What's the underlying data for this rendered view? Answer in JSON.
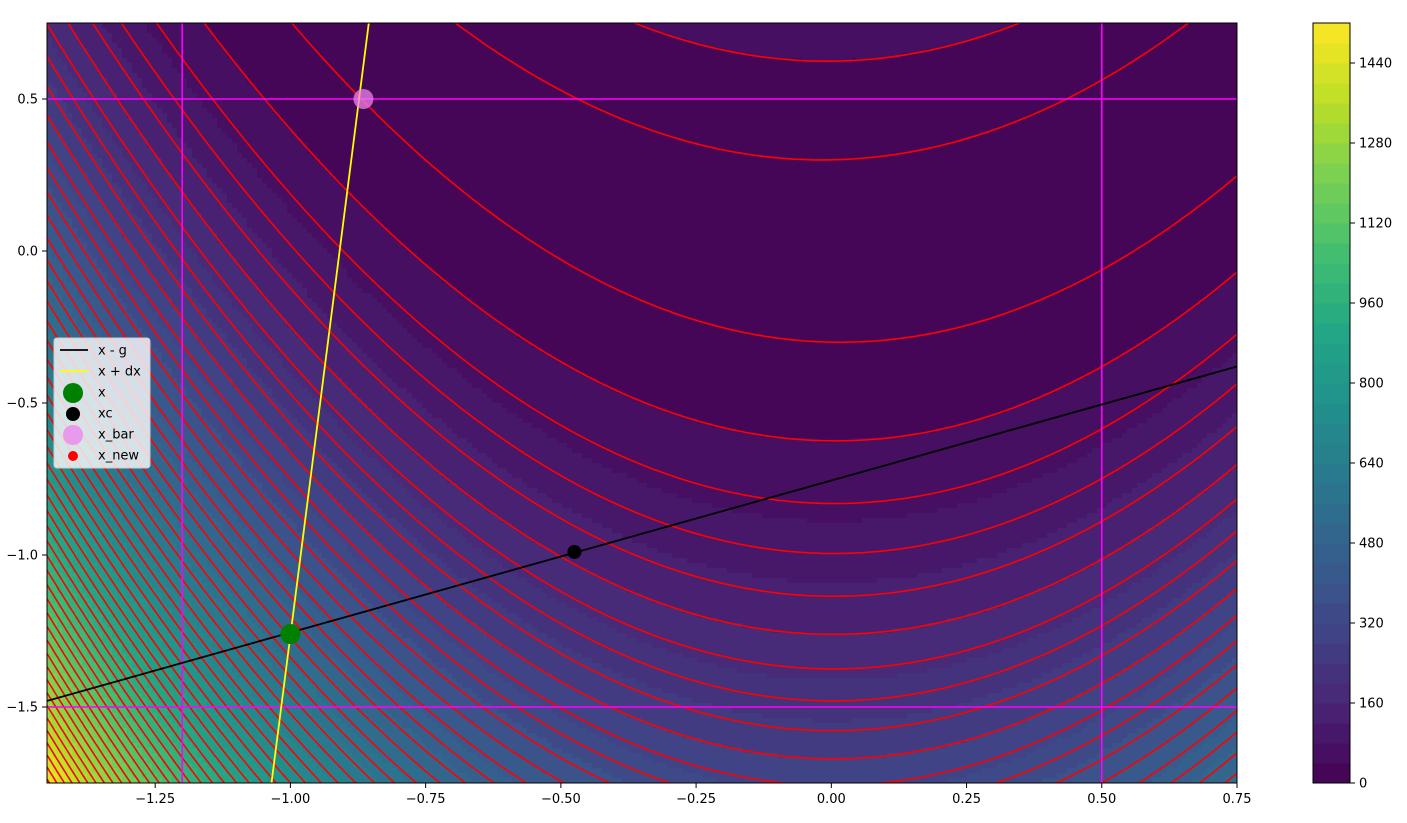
{
  "chart_data": {
    "type": "contour",
    "title": "",
    "xlabel": "",
    "ylabel": "",
    "xlim": [
      -1.45,
      0.75
    ],
    "ylim": [
      -1.75,
      0.75
    ],
    "x_ticks": [
      "−1.25",
      "−1.00",
      "−0.75",
      "−0.50",
      "−0.25",
      "0.00",
      "0.25",
      "0.50",
      "0.75"
    ],
    "x_tick_values": [
      -1.25,
      -1.0,
      -0.75,
      -0.5,
      -0.25,
      0.0,
      0.25,
      0.5,
      0.75
    ],
    "y_ticks": [
      "−1.5",
      "−1.0",
      "−0.5",
      "0.0",
      "0.5"
    ],
    "y_tick_values": [
      -1.5,
      -1.0,
      -0.5,
      0.0,
      0.5
    ],
    "grid": false,
    "filled_contour": {
      "function": "100*(y - x^2)^2 + (1 - x)^2",
      "colormap": "viridis",
      "levels_step": 40,
      "vmin": 0,
      "vmax": 1520
    },
    "line_contour_color": "#ff0000",
    "colorbar": {
      "ticks": [
        "0",
        "160",
        "320",
        "480",
        "640",
        "800",
        "960",
        "1120",
        "1280",
        "1440"
      ],
      "tick_values": [
        0,
        160,
        320,
        480,
        640,
        800,
        960,
        1120,
        1280,
        1440
      ]
    },
    "bounds": {
      "color": "#ff00ff",
      "vertical_x": [
        -1.2,
        0.5
      ],
      "horizontal_y": [
        -1.5,
        0.5
      ]
    },
    "series": [
      {
        "name": "x - g",
        "type": "line",
        "color": "#000000",
        "x": [
          -1.45,
          0.75
        ],
        "y": [
          -1.48,
          -0.38
        ]
      },
      {
        "name": "x + dx",
        "type": "line",
        "color": "#ffff00",
        "x": [
          -1.035,
          -0.855
        ],
        "y": [
          -1.75,
          0.75
        ]
      },
      {
        "name": "x",
        "type": "scatter",
        "color": "#008000",
        "x": [
          -1.0
        ],
        "y": [
          -1.26
        ]
      },
      {
        "name": "xc",
        "type": "scatter",
        "color": "#000000",
        "x": [
          -0.475
        ],
        "y": [
          -0.99
        ]
      },
      {
        "name": "x_bar",
        "type": "scatter",
        "color": "#ee82ee",
        "x": [
          -0.865
        ],
        "y": [
          0.5
        ]
      },
      {
        "name": "x_new",
        "type": "scatter",
        "color": "#ff0000",
        "x": [],
        "y": []
      }
    ],
    "legend_position": "center-left"
  }
}
